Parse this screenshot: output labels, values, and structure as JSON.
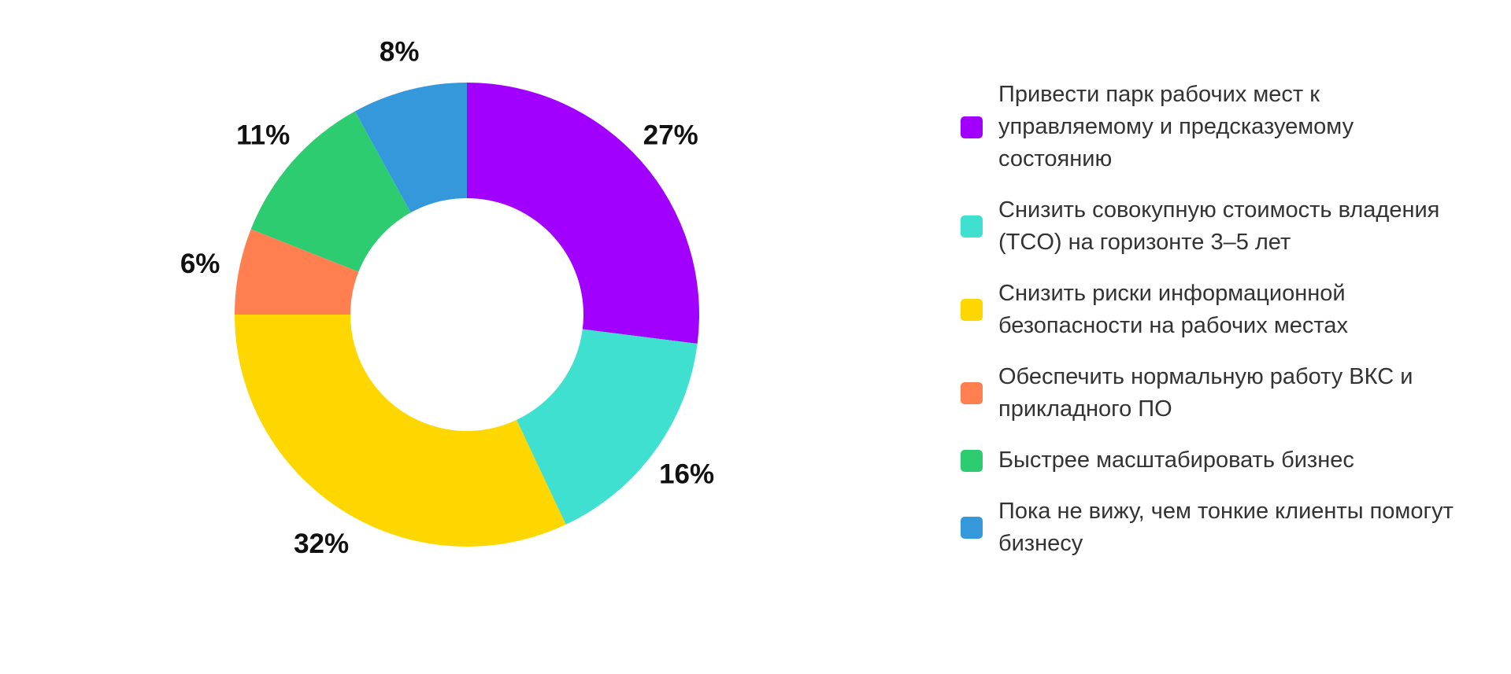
{
  "chart_data": {
    "type": "pie",
    "variant": "donut",
    "title": "",
    "legend_position": "right",
    "slices": [
      {
        "label": "Привести парк рабочих мест к управляемому и предсказуемому состоянию",
        "value": 27,
        "value_label": "27%",
        "color": "#A100FF"
      },
      {
        "label": "Снизить совокупную стоимость владения (TCO) на горизонте 3–5 лет",
        "value": 16,
        "value_label": "16%",
        "color": "#40E0D0"
      },
      {
        "label": "Снизить риски информационной безопасности на рабочих местах",
        "value": 32,
        "value_label": "32%",
        "color": "#FFD700"
      },
      {
        "label": "Обеспечить нормальную работу ВКС и прикладного ПО",
        "value": 6,
        "value_label": "6%",
        "color": "#FF7F50"
      },
      {
        "label": "Быстрее масштабировать бизнес",
        "value": 11,
        "value_label": "11%",
        "color": "#2ECC71"
      },
      {
        "label": "Пока не вижу, чем тонкие клиенты помогут бизнесу",
        "value": 8,
        "value_label": "8%",
        "color": "#3498DB"
      }
    ]
  }
}
